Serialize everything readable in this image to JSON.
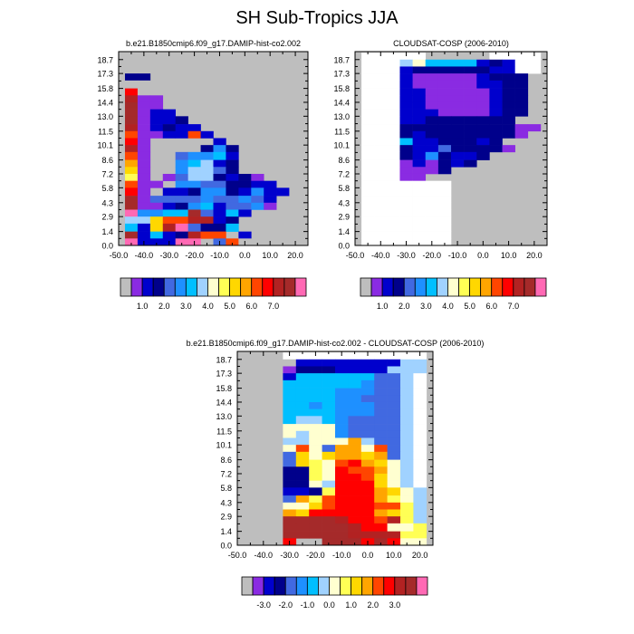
{
  "page_title": "SH Sub-Tropics JJA",
  "chart_data": [
    {
      "type": "heatmap",
      "title": "b.e21.B1850cmip6.f09_g17.DAMIP-hist-co2.002",
      "x_ticks": [
        "-50.0",
        "-40.0",
        "-30.0",
        "-20.0",
        "-10.0",
        "0.0",
        "10.0",
        "20.0"
      ],
      "y_ticks": [
        "0.0",
        "1.4",
        "2.9",
        "4.3",
        "5.8",
        "7.2",
        "8.6",
        "10.1",
        "11.5",
        "13.0",
        "14.4",
        "15.8",
        "17.3",
        "18.7"
      ],
      "xlim": [
        -50,
        25
      ],
      "ylim": [
        0,
        19.5
      ],
      "x_edges": [
        -47.5,
        -42.5,
        -37.5,
        -32.5,
        -27.5,
        -22.5,
        -17.5,
        -12.5,
        -7.5,
        -2.5,
        2.5,
        7.5,
        12.5,
        17.5,
        22.5
      ],
      "y_edges": [
        0,
        0.7,
        1.4,
        2.2,
        2.9,
        3.6,
        4.3,
        5.0,
        5.8,
        6.5,
        7.2,
        7.9,
        8.6,
        9.4,
        10.1,
        10.8,
        11.5,
        12.2,
        13.0,
        13.7,
        14.4,
        15.1,
        15.8,
        16.6,
        17.3,
        18.0,
        18.7,
        19.4
      ],
      "missing_color": "#bebebe",
      "colorbar": {
        "labels": [
          "1.0",
          "2.0",
          "3.0",
          "4.0",
          "5.0",
          "6.0",
          "7.0"
        ],
        "colors": [
          "#bebebe",
          "#8a2be2",
          "#0000cd",
          "#00008b",
          "#4169e1",
          "#1e90ff",
          "#00bfff",
          "#a0d2ff",
          "#ffffd0",
          "#ffff55",
          "#ffd700",
          "#ffa500",
          "#ff4500",
          "#ff0000",
          "#b22222",
          "#a52a2a",
          "#ff69b4"
        ]
      },
      "rows": [
        "..............",
        "..............",
        "..............",
        "33............",
        "00............",
        "D0............",
        "E11...........",
        "F11...........",
        "F122..........",
        "F1223.........",
        "E12322........",
        "C1122C2.......",
        "D1.....2......",
        "E1....353.....",
        "C1..45562.....",
        "B1..56723.....",
        "A1..57743.....",
        "91.14773231...",
        "C11.55443322..",
        "D1.2235532522.",
        "F14444544542..",
        "F11235624451..",
        "G5566F4262....",
        "77ACCEE23.....",
        "62AEG4336.....",
        "F2623ECC.2....",
        "G222GG.4C0...."
      ]
    },
    {
      "type": "heatmap",
      "title": "CLOUDSAT-COSP (2006-2010)",
      "x_ticks": [
        "-50.0",
        "-40.0",
        "-30.0",
        "-20.0",
        "-10.0",
        "0.0",
        "10.0",
        "20.0"
      ],
      "y_ticks": [
        "0.0",
        "1.4",
        "2.9",
        "4.3",
        "5.8",
        "7.2",
        "8.6",
        "10.1",
        "11.5",
        "13.0",
        "14.4",
        "15.8",
        "17.3",
        "18.7"
      ],
      "xlim": [
        -50,
        25
      ],
      "ylim": [
        0,
        19.5
      ],
      "x_edges": [
        -47.5,
        -42.5,
        -37.5,
        -32.5,
        -27.5,
        -22.5,
        -17.5,
        -12.5,
        -7.5,
        -2.5,
        2.5,
        7.5,
        12.5,
        17.5,
        22.5
      ],
      "y_edges": [
        0,
        0.7,
        1.4,
        2.2,
        2.9,
        3.6,
        4.3,
        5.0,
        5.8,
        6.5,
        7.2,
        7.9,
        8.6,
        9.4,
        10.1,
        10.8,
        11.5,
        12.2,
        13.0,
        13.7,
        14.4,
        15.1,
        15.8,
        16.6,
        17.3,
        18.0,
        18.7,
        19.4
      ],
      "missing_color": "#bebebe",
      "colorbar": {
        "labels": [
          "1.0",
          "2.0",
          "3.0",
          "4.0",
          "5.0",
          "6.0",
          "7.0"
        ],
        "colors": [
          "#bebebe",
          "#8a2be2",
          "#0000cd",
          "#00008b",
          "#4169e1",
          "#1e90ff",
          "#00bfff",
          "#a0d2ff",
          "#ffffd0",
          "#ffff55",
          "#ffd700",
          "#ffa500",
          "#ff4500",
          "#ff0000",
          "#b22222",
          "#a52a2a",
          "#ff69b4"
        ]
      },
      "rows": [
        "_____....._____",
        "___786666232___",
        "___233333322___",
        "___2111112333..",
        "___2111112233..",
        "___2211111233..",
        "___2211111233..",
        "___2211111233..",
        "___2221111233..",
        "___223333333...",
        "___33333333311.",
        "___3233333331..",
        "___62233323....",
        "___322433331...",
        "___3253223.....",
        "___121323......",
        "___1113........",
        "___11..........",
        "_______........",
        "_______........",
        "_______........",
        "_______........",
        "_______........",
        "_______........",
        "_______........",
        "_______........",
        "_______........"
      ]
    },
    {
      "type": "heatmap",
      "title": "b.e21.B1850cmip6.f09_g17.DAMIP-hist-co2.002 - CLOUDSAT-COSP (2006-2010)",
      "x_ticks": [
        "-50.0",
        "-40.0",
        "-30.0",
        "-20.0",
        "-10.0",
        "0.0",
        "10.0",
        "20.0"
      ],
      "y_ticks": [
        "0.0",
        "1.4",
        "2.9",
        "4.3",
        "5.8",
        "7.2",
        "8.6",
        "10.1",
        "11.5",
        "13.0",
        "14.4",
        "15.8",
        "17.3",
        "18.7"
      ],
      "xlim": [
        -50,
        25
      ],
      "ylim": [
        0,
        19.5
      ],
      "x_edges": [
        -47.5,
        -42.5,
        -37.5,
        -32.5,
        -27.5,
        -22.5,
        -17.5,
        -12.5,
        -7.5,
        -2.5,
        2.5,
        7.5,
        12.5,
        17.5,
        22.5
      ],
      "y_edges": [
        0,
        0.7,
        1.4,
        2.2,
        2.9,
        3.6,
        4.3,
        5.0,
        5.8,
        6.5,
        7.2,
        7.9,
        8.6,
        9.4,
        10.1,
        10.8,
        11.5,
        12.2,
        13.0,
        13.7,
        14.4,
        15.1,
        15.8,
        16.6,
        17.3,
        18.0,
        18.7,
        19.4
      ],
      "missing_color": "#bebebe",
      "colorbar": {
        "labels": [
          "-3.0",
          "-2.0",
          "-1.0",
          "0.0",
          "1.0",
          "2.0",
          "3.0"
        ],
        "colors": [
          "#bebebe",
          "#8a2be2",
          "#0000cd",
          "#00008b",
          "#4169e1",
          "#1e90ff",
          "#00bfff",
          "#a0d2ff",
          "#ffffd0",
          "#ffff55",
          "#ffd700",
          "#ffa500",
          "#ff4500",
          "#ff0000",
          "#b22222",
          "#a52a2a",
          "#ff69b4"
        ]
      },
      "rows": [
        "...____________",
        "...02222222277_",
        "...13332222777_",
        "...2666666447_8",
        "...6666665447_8",
        "...6666555447_8",
        "...6666554447_8",
        "...6656555447_8",
        "...6666555447_8",
        "...6776544447_8",
        "...8888544447_8",
        "...8788544447_8",
        "...77888B7447_8",
        "...8C84BB8C47_8",
        "...4A8ABBAB47_8",
        "...4A98CDBA87_8",
        "...3398DCCB87_8",
        "...3398DDCA87_8",
        "...3387DDDA87_8",
        "...2239DDDBA87_",
        "...4B9CDDDB987_",
        "...88ACDDDCC97_",
        "...BADDDDDBA97_",
        "...FFFFEDDCE97_",
        "...FFFFFEDD889_",
        "...FFFFFEEEE99_",
        "...D..FFFDFD88_"
      ]
    }
  ]
}
